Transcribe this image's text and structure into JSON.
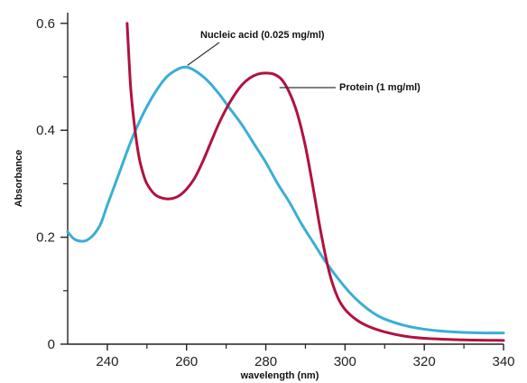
{
  "chart_data": {
    "type": "line",
    "title": "",
    "xlabel": "wavelength (nm)",
    "ylabel": "Absorbance",
    "xlim": [
      230,
      340
    ],
    "ylim": [
      0,
      0.62
    ],
    "xticks": [
      240,
      260,
      280,
      300,
      320,
      340
    ],
    "yticks": [
      0,
      0.2,
      0.4,
      0.6
    ],
    "xtick_labels": [
      "240",
      "260",
      "280",
      "300",
      "320",
      "340"
    ],
    "ytick_labels": [
      "0",
      "0.2",
      "0.4",
      "0.6"
    ],
    "grid": false,
    "series": [
      {
        "name": "Nucleic acid (0.025 mg/ml)",
        "color": "#3aaed6",
        "x": [
          230,
          232,
          235,
          238,
          240,
          243,
          246,
          249,
          252,
          255,
          258,
          260,
          262,
          265,
          268,
          271,
          274,
          277,
          280,
          283,
          286,
          289,
          292,
          295,
          298,
          301,
          304,
          307,
          310,
          315,
          320,
          325,
          330,
          335,
          340
        ],
        "y": [
          0.21,
          0.195,
          0.195,
          0.22,
          0.26,
          0.32,
          0.38,
          0.43,
          0.47,
          0.5,
          0.515,
          0.518,
          0.512,
          0.495,
          0.47,
          0.44,
          0.41,
          0.375,
          0.34,
          0.3,
          0.265,
          0.225,
          0.19,
          0.155,
          0.125,
          0.098,
          0.076,
          0.059,
          0.047,
          0.035,
          0.028,
          0.024,
          0.022,
          0.021,
          0.021
        ]
      },
      {
        "name": "Protein (1 mg/ml)",
        "color": "#b0123f",
        "x": [
          245,
          245.5,
          246,
          247,
          248,
          249,
          250,
          252,
          254,
          256,
          258,
          260,
          262,
          264,
          266,
          268,
          270,
          272,
          274,
          276,
          278,
          280,
          282,
          284,
          286,
          288,
          290,
          292,
          294,
          296,
          298,
          300,
          303,
          306,
          310,
          315,
          320,
          330,
          340
        ],
        "y": [
          0.6,
          0.53,
          0.47,
          0.4,
          0.35,
          0.32,
          0.3,
          0.28,
          0.273,
          0.272,
          0.277,
          0.29,
          0.31,
          0.34,
          0.375,
          0.41,
          0.44,
          0.465,
          0.485,
          0.498,
          0.505,
          0.507,
          0.505,
          0.495,
          0.47,
          0.43,
          0.37,
          0.29,
          0.205,
          0.135,
          0.09,
          0.065,
          0.045,
          0.033,
          0.023,
          0.015,
          0.011,
          0.008,
          0.007
        ]
      }
    ],
    "annotations": [
      {
        "text": "Nucleic acid (0.025 mg/ml)",
        "target_series": 0,
        "target_x": 260,
        "target_y": 0.518
      },
      {
        "text": "Protein (1 mg/ml)",
        "target_series": 1,
        "target_x": 283,
        "target_y": 0.504
      }
    ]
  }
}
